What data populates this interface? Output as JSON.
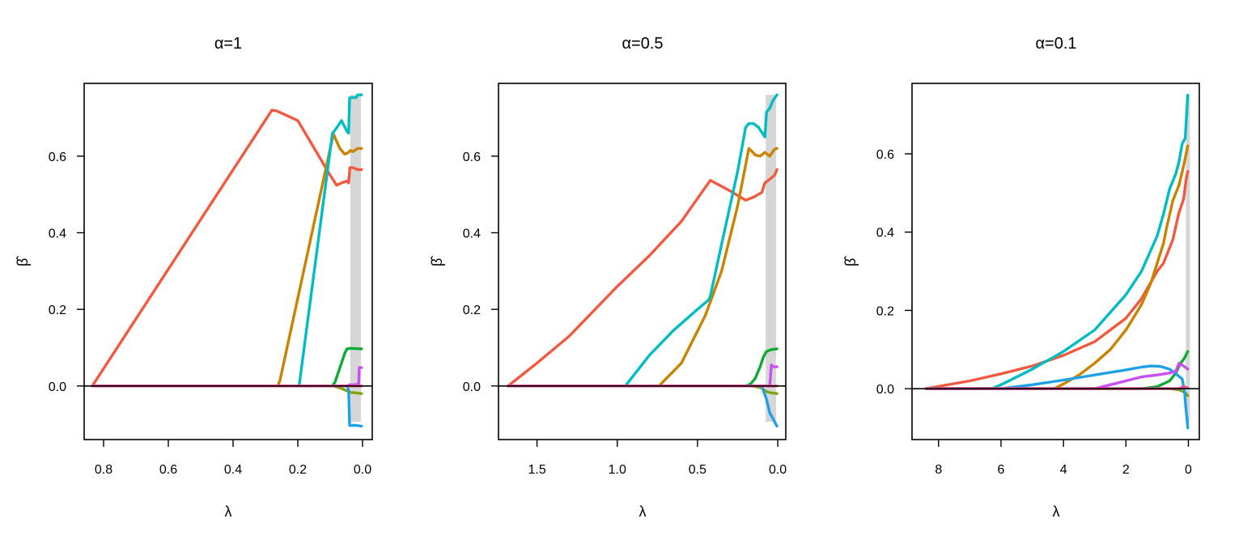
{
  "chart_data": [
    {
      "type": "line",
      "title": "α=1",
      "xlabel": "λ",
      "ylabel": "β̂",
      "xlim": [
        0.86,
        -0.03
      ],
      "ylim": [
        -0.14,
        0.79
      ],
      "x_ticks": [
        0.8,
        0.6,
        0.4,
        0.2,
        0.0
      ],
      "x_tick_labels": [
        "0.8",
        "0.6",
        "0.4",
        "0.2",
        "0.0"
      ],
      "y_ticks": [
        0.0,
        0.2,
        0.4,
        0.6
      ],
      "y_tick_labels": [
        "0.0",
        "0.2",
        "0.4",
        "0.6"
      ],
      "zero_line": true,
      "shaded_band": [
        0.038,
        0.005
      ],
      "shaded_band_ymax": 0.76,
      "series": [
        {
          "color": "#f15a40",
          "x": [
            0.835,
            0.28,
            0.265,
            0.2,
            0.1,
            0.08,
            0.065,
            0.048,
            0.043,
            0.039,
            0.03,
            0.015,
            0.003
          ],
          "y": [
            0,
            0.72,
            0.718,
            0.693,
            0.55,
            0.524,
            0.53,
            0.535,
            0.53,
            0.57,
            0.57,
            0.565,
            0.565
          ]
        },
        {
          "color": "#c98300",
          "x": [
            0.835,
            0.262,
            0.255,
            0.09,
            0.07,
            0.055,
            0.043,
            0.038,
            0.03,
            0.015,
            0.003
          ],
          "y": [
            0,
            0,
            0.015,
            0.658,
            0.62,
            0.605,
            0.61,
            0.615,
            0.612,
            0.62,
            0.62
          ]
        },
        {
          "color": "#00bdc4",
          "x": [
            0.835,
            0.196,
            0.093,
            0.085,
            0.075,
            0.065,
            0.048,
            0.043,
            0.04,
            0.035,
            0.02,
            0.015,
            0.003
          ],
          "y": [
            0,
            0,
            0.66,
            0.668,
            0.68,
            0.693,
            0.665,
            0.66,
            0.752,
            0.753,
            0.753,
            0.76,
            0.76
          ]
        },
        {
          "color": "#0cab34",
          "x": [
            0.835,
            0.093,
            0.085,
            0.075,
            0.065,
            0.055,
            0.048,
            0.04,
            0.03,
            0.003
          ],
          "y": [
            0,
            0,
            0.01,
            0.035,
            0.06,
            0.085,
            0.097,
            0.098,
            0.098,
            0.097
          ]
        },
        {
          "color": "#7fa40e",
          "x": [
            0.835,
            0.09,
            0.07,
            0.05,
            0.043,
            0.038,
            0.02,
            0.003
          ],
          "y": [
            0,
            0,
            -0.005,
            -0.012,
            -0.015,
            -0.017,
            -0.018,
            -0.02
          ]
        },
        {
          "color": "#1fa1e8",
          "x": [
            0.835,
            0.047,
            0.043,
            0.04,
            0.02,
            0.003
          ],
          "y": [
            0,
            0,
            -0.01,
            -0.103,
            -0.103,
            -0.105
          ]
        },
        {
          "color": "#c850f0",
          "x": [
            0.835,
            0.048,
            0.04,
            0.025,
            0.012,
            0.01,
            0.003
          ],
          "y": [
            0,
            0,
            0.003,
            0.003,
            0.005,
            0.048,
            0.048
          ]
        },
        {
          "color": "#e84d8f",
          "x": [
            0.835,
            0.003
          ],
          "y": [
            0,
            0
          ]
        }
      ]
    },
    {
      "type": "line",
      "title": "α=0.5",
      "xlabel": "λ",
      "ylabel": "β̂",
      "xlim": [
        1.74,
        -0.05
      ],
      "ylim": [
        -0.14,
        0.79
      ],
      "x_ticks": [
        1.5,
        1.0,
        0.5,
        0.0
      ],
      "x_tick_labels": [
        "1.5",
        "1.0",
        "0.5",
        "0.0"
      ],
      "y_ticks": [
        0.0,
        0.2,
        0.4,
        0.6
      ],
      "y_tick_labels": [
        "0.0",
        "0.2",
        "0.4",
        "0.6"
      ],
      "zero_line": true,
      "shaded_band": [
        0.075,
        0.01
      ],
      "shaded_band_ymax": 0.76,
      "series": [
        {
          "color": "#f15a40",
          "x": [
            1.68,
            1.5,
            1.3,
            1.0,
            0.8,
            0.6,
            0.42,
            0.3,
            0.2,
            0.15,
            0.1,
            0.08,
            0.05,
            0.02,
            0.005
          ],
          "y": [
            0,
            0.06,
            0.13,
            0.26,
            0.34,
            0.43,
            0.537,
            0.51,
            0.485,
            0.493,
            0.505,
            0.53,
            0.54,
            0.55,
            0.565
          ]
        },
        {
          "color": "#c98300",
          "x": [
            1.68,
            0.74,
            0.6,
            0.45,
            0.35,
            0.25,
            0.18,
            0.16,
            0.14,
            0.11,
            0.08,
            0.05,
            0.02,
            0.005
          ],
          "y": [
            0,
            0,
            0.06,
            0.185,
            0.3,
            0.47,
            0.62,
            0.612,
            0.603,
            0.6,
            0.61,
            0.6,
            0.618,
            0.62
          ]
        },
        {
          "color": "#00bdc4",
          "x": [
            1.68,
            0.95,
            0.8,
            0.65,
            0.5,
            0.43,
            0.42,
            0.35,
            0.25,
            0.2,
            0.18,
            0.15,
            0.12,
            0.08,
            0.07,
            0.05,
            0.03,
            0.005
          ],
          "y": [
            0,
            0,
            0.08,
            0.145,
            0.2,
            0.225,
            0.235,
            0.37,
            0.56,
            0.675,
            0.685,
            0.685,
            0.675,
            0.65,
            0.715,
            0.725,
            0.745,
            0.76
          ]
        },
        {
          "color": "#0cab34",
          "x": [
            1.68,
            0.2,
            0.17,
            0.14,
            0.11,
            0.09,
            0.07,
            0.04,
            0.005
          ],
          "y": [
            0,
            0,
            0.005,
            0.02,
            0.05,
            0.075,
            0.09,
            0.095,
            0.097
          ]
        },
        {
          "color": "#7fa40e",
          "x": [
            1.68,
            0.16,
            0.1,
            0.07,
            0.04,
            0.005
          ],
          "y": [
            0,
            0,
            -0.005,
            -0.015,
            -0.018,
            -0.02
          ]
        },
        {
          "color": "#1fa1e8",
          "x": [
            1.68,
            0.1,
            0.07,
            0.05,
            0.03,
            0.005
          ],
          "y": [
            0,
            0,
            -0.035,
            -0.07,
            -0.085,
            -0.105
          ]
        },
        {
          "color": "#c850f0",
          "x": [
            1.68,
            0.05,
            0.04,
            0.03,
            0.005
          ],
          "y": [
            0,
            0,
            0.055,
            0.05,
            0.05
          ]
        },
        {
          "color": "#e84d8f",
          "x": [
            1.68,
            0.005
          ],
          "y": [
            0,
            0
          ]
        }
      ]
    },
    {
      "type": "line",
      "title": "α=0.1",
      "xlabel": "λ",
      "ylabel": "β̂",
      "xlim": [
        8.85,
        -0.35
      ],
      "ylim": [
        -0.13,
        0.78
      ],
      "x_ticks": [
        8,
        6,
        4,
        2,
        0
      ],
      "x_tick_labels": [
        "8",
        "6",
        "4",
        "2",
        "0"
      ],
      "y_ticks": [
        0.0,
        0.2,
        0.4,
        0.6
      ],
      "y_tick_labels": [
        "0.0",
        "0.2",
        "0.4",
        "0.6"
      ],
      "zero_line": true,
      "shaded_band": [
        0.08,
        -0.05
      ],
      "shaded_band_ymax": 0.75,
      "series": [
        {
          "color": "#f15a40",
          "x": [
            8.4,
            7.0,
            6.0,
            5.0,
            4.0,
            3.0,
            2.0,
            1.5,
            1.0,
            0.8,
            0.5,
            0.3,
            0.15,
            0.08,
            0.02
          ],
          "y": [
            0,
            0.02,
            0.038,
            0.058,
            0.085,
            0.12,
            0.18,
            0.23,
            0.3,
            0.32,
            0.38,
            0.45,
            0.485,
            0.53,
            0.555
          ]
        },
        {
          "color": "#c98300",
          "x": [
            8.4,
            4.3,
            4.0,
            3.5,
            3.0,
            2.5,
            2.0,
            1.5,
            1.2,
            1.0,
            0.8,
            0.7,
            0.5,
            0.3,
            0.15,
            0.02
          ],
          "y": [
            0,
            0,
            0.012,
            0.035,
            0.065,
            0.1,
            0.15,
            0.215,
            0.27,
            0.32,
            0.37,
            0.41,
            0.48,
            0.52,
            0.57,
            0.62
          ]
        },
        {
          "color": "#00bdc4",
          "x": [
            8.4,
            6.3,
            6.0,
            5.0,
            4.0,
            3.0,
            2.0,
            1.5,
            1.0,
            0.8,
            0.6,
            0.4,
            0.3,
            0.2,
            0.1,
            0.02
          ],
          "y": [
            0,
            0,
            0.01,
            0.05,
            0.095,
            0.15,
            0.24,
            0.3,
            0.39,
            0.445,
            0.51,
            0.55,
            0.58,
            0.625,
            0.64,
            0.75
          ]
        },
        {
          "color": "#0cab34",
          "x": [
            8.4,
            1.5,
            1.0,
            0.6,
            0.4,
            0.25,
            0.15,
            0.08,
            0.02
          ],
          "y": [
            0,
            0,
            0.005,
            0.02,
            0.04,
            0.065,
            0.075,
            0.085,
            0.095
          ]
        },
        {
          "color": "#7fa40e",
          "x": [
            8.4,
            0.6,
            0.3,
            0.15,
            0.08,
            0.02
          ],
          "y": [
            0,
            0,
            -0.003,
            -0.008,
            -0.012,
            -0.018
          ]
        },
        {
          "color": "#1fa1e8",
          "x": [
            8.4,
            6.0,
            5.0,
            4.0,
            3.0,
            2.0,
            1.5,
            1.2,
            0.9,
            0.6,
            0.4,
            0.2,
            0.12,
            0.08,
            0.04,
            0.02
          ],
          "y": [
            0,
            0,
            0.01,
            0.022,
            0.035,
            0.048,
            0.055,
            0.058,
            0.057,
            0.05,
            0.038,
            0.025,
            -0.01,
            -0.05,
            -0.08,
            -0.1
          ]
        },
        {
          "color": "#c850f0",
          "x": [
            8.4,
            3.0,
            2.5,
            2.0,
            1.5,
            1.0,
            0.6,
            0.4,
            0.3,
            0.2,
            0.1,
            0.02
          ],
          "y": [
            0,
            0,
            0.01,
            0.02,
            0.03,
            0.035,
            0.04,
            0.045,
            0.065,
            0.06,
            0.055,
            0.05
          ]
        },
        {
          "color": "#e84d8f",
          "x": [
            8.4,
            0.3,
            0.15,
            0.02
          ],
          "y": [
            0,
            0,
            0.005,
            0.002
          ]
        }
      ]
    }
  ]
}
